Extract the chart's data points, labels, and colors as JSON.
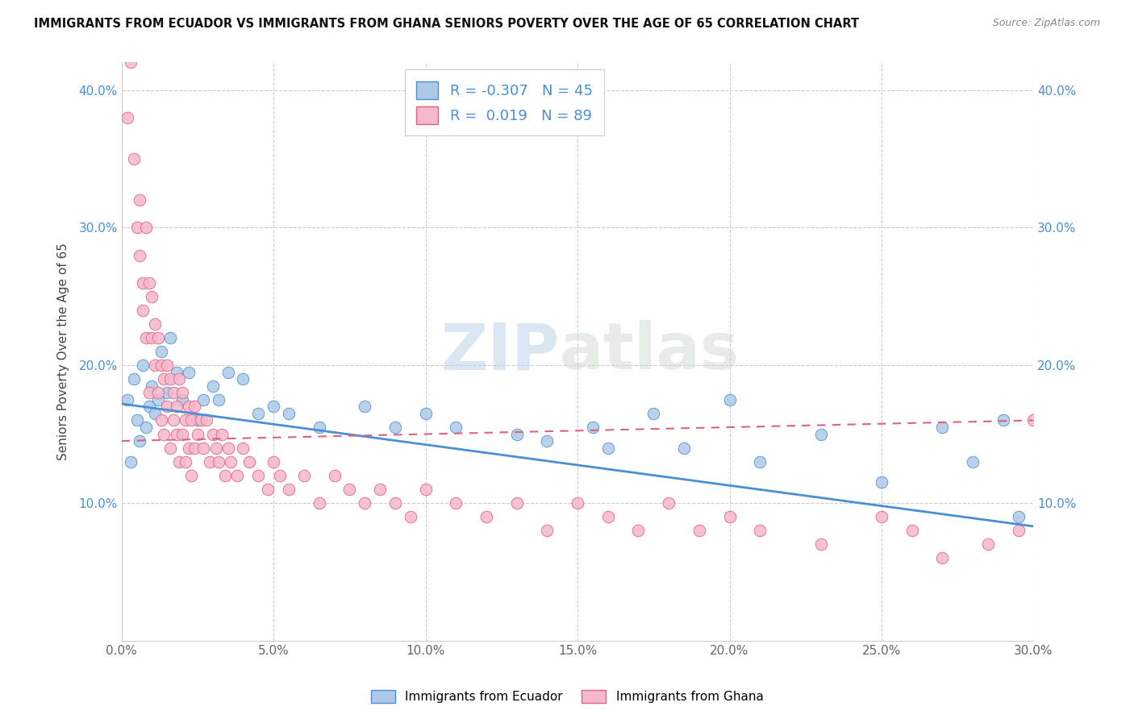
{
  "title": "IMMIGRANTS FROM ECUADOR VS IMMIGRANTS FROM GHANA SENIORS POVERTY OVER THE AGE OF 65 CORRELATION CHART",
  "source": "Source: ZipAtlas.com",
  "ylabel": "Seniors Poverty Over the Age of 65",
  "legend_label1": "Immigrants from Ecuador",
  "legend_label2": "Immigrants from Ghana",
  "R1": -0.307,
  "N1": 45,
  "R2": 0.019,
  "N2": 89,
  "color1": "#aec9e8",
  "color2": "#f5b8cb",
  "line_color1": "#4a8fd4",
  "line_color2": "#e06080",
  "xlim": [
    0.0,
    0.3
  ],
  "ylim": [
    0.0,
    0.42
  ],
  "xticks": [
    0.0,
    0.05,
    0.1,
    0.15,
    0.2,
    0.25,
    0.3
  ],
  "yticks": [
    0.1,
    0.2,
    0.3,
    0.4
  ],
  "watermark": "ZIPatlas",
  "ecuador_x": [
    0.002,
    0.003,
    0.004,
    0.005,
    0.006,
    0.007,
    0.008,
    0.009,
    0.01,
    0.011,
    0.012,
    0.013,
    0.015,
    0.016,
    0.018,
    0.02,
    0.022,
    0.025,
    0.027,
    0.03,
    0.032,
    0.035,
    0.04,
    0.045,
    0.05,
    0.055,
    0.065,
    0.08,
    0.09,
    0.1,
    0.11,
    0.13,
    0.14,
    0.155,
    0.16,
    0.175,
    0.185,
    0.2,
    0.21,
    0.23,
    0.25,
    0.27,
    0.28,
    0.29,
    0.295
  ],
  "ecuador_y": [
    0.175,
    0.13,
    0.19,
    0.16,
    0.145,
    0.2,
    0.155,
    0.17,
    0.185,
    0.165,
    0.175,
    0.21,
    0.18,
    0.22,
    0.195,
    0.175,
    0.195,
    0.16,
    0.175,
    0.185,
    0.175,
    0.195,
    0.19,
    0.165,
    0.17,
    0.165,
    0.155,
    0.17,
    0.155,
    0.165,
    0.155,
    0.15,
    0.145,
    0.155,
    0.14,
    0.165,
    0.14,
    0.175,
    0.13,
    0.15,
    0.115,
    0.155,
    0.13,
    0.16,
    0.09
  ],
  "ghana_x": [
    0.002,
    0.003,
    0.004,
    0.005,
    0.006,
    0.006,
    0.007,
    0.007,
    0.008,
    0.008,
    0.009,
    0.009,
    0.01,
    0.01,
    0.011,
    0.011,
    0.012,
    0.012,
    0.013,
    0.013,
    0.014,
    0.014,
    0.015,
    0.015,
    0.016,
    0.016,
    0.017,
    0.017,
    0.018,
    0.018,
    0.019,
    0.019,
    0.02,
    0.02,
    0.021,
    0.021,
    0.022,
    0.022,
    0.023,
    0.023,
    0.024,
    0.024,
    0.025,
    0.026,
    0.027,
    0.028,
    0.029,
    0.03,
    0.031,
    0.032,
    0.033,
    0.034,
    0.035,
    0.036,
    0.038,
    0.04,
    0.042,
    0.045,
    0.048,
    0.05,
    0.052,
    0.055,
    0.06,
    0.065,
    0.07,
    0.075,
    0.08,
    0.085,
    0.09,
    0.095,
    0.1,
    0.11,
    0.12,
    0.13,
    0.14,
    0.15,
    0.16,
    0.17,
    0.18,
    0.19,
    0.2,
    0.21,
    0.23,
    0.25,
    0.26,
    0.27,
    0.285,
    0.295,
    0.3
  ],
  "ghana_y": [
    0.38,
    0.42,
    0.35,
    0.3,
    0.28,
    0.32,
    0.26,
    0.24,
    0.3,
    0.22,
    0.26,
    0.18,
    0.22,
    0.25,
    0.2,
    0.23,
    0.18,
    0.22,
    0.16,
    0.2,
    0.19,
    0.15,
    0.2,
    0.17,
    0.19,
    0.14,
    0.18,
    0.16,
    0.17,
    0.15,
    0.19,
    0.13,
    0.18,
    0.15,
    0.16,
    0.13,
    0.17,
    0.14,
    0.16,
    0.12,
    0.17,
    0.14,
    0.15,
    0.16,
    0.14,
    0.16,
    0.13,
    0.15,
    0.14,
    0.13,
    0.15,
    0.12,
    0.14,
    0.13,
    0.12,
    0.14,
    0.13,
    0.12,
    0.11,
    0.13,
    0.12,
    0.11,
    0.12,
    0.1,
    0.12,
    0.11,
    0.1,
    0.11,
    0.1,
    0.09,
    0.11,
    0.1,
    0.09,
    0.1,
    0.08,
    0.1,
    0.09,
    0.08,
    0.1,
    0.08,
    0.09,
    0.08,
    0.07,
    0.09,
    0.08,
    0.06,
    0.07,
    0.08,
    0.16
  ],
  "ec_line_x": [
    0.0,
    0.3
  ],
  "ec_line_y": [
    0.172,
    0.083
  ],
  "gh_line_x": [
    0.0,
    0.3
  ],
  "gh_line_y": [
    0.145,
    0.16
  ]
}
